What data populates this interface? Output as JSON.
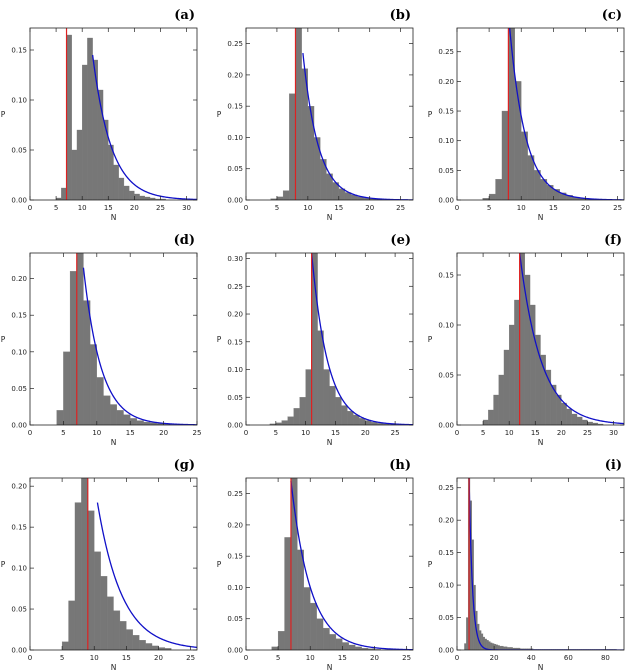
{
  "colors": {
    "bar": "#777777",
    "fit": "#1010c8",
    "marker": "#dd2222",
    "axis": "#222222"
  },
  "chart_data": [
    {
      "panel": "(a)",
      "type": "bar",
      "xlabel": "N",
      "ylabel": "P",
      "xlim": [
        0,
        32
      ],
      "ylim": [
        0,
        0.172
      ],
      "xticks": [
        0,
        5,
        10,
        15,
        20,
        25,
        30
      ],
      "yticks": [
        0.0,
        0.05,
        0.1,
        0.15
      ],
      "bins": {
        "start": 5,
        "width": 1,
        "values": [
          0.002,
          0.012,
          0.165,
          0.05,
          0.07,
          0.135,
          0.162,
          0.14,
          0.11,
          0.08,
          0.055,
          0.035,
          0.022,
          0.014,
          0.009,
          0.006,
          0.004,
          0.003,
          0.002,
          0.001,
          0.001
        ]
      },
      "fit": {
        "x0": 12,
        "xmax": 32,
        "peak": 0.145,
        "decay": 0.28
      },
      "marker": 7
    },
    {
      "panel": "(b)",
      "type": "bar",
      "xlabel": "N",
      "ylabel": "P",
      "xlim": [
        0,
        27
      ],
      "ylim": [
        0,
        0.275
      ],
      "xticks": [
        0,
        5,
        10,
        15,
        20,
        25
      ],
      "yticks": [
        0.0,
        0.05,
        0.1,
        0.15,
        0.2,
        0.25
      ],
      "bins": {
        "start": 4,
        "width": 1,
        "values": [
          0.002,
          0.005,
          0.015,
          0.17,
          0.275,
          0.21,
          0.15,
          0.1,
          0.065,
          0.042,
          0.028,
          0.018,
          0.012,
          0.008,
          0.005,
          0.003,
          0.002,
          0.001
        ]
      },
      "fit": {
        "x0": 9.2,
        "xmax": 27,
        "peak": 0.235,
        "decay": 0.4
      },
      "marker": 8
    },
    {
      "panel": "(c)",
      "type": "bar",
      "xlabel": "N",
      "ylabel": "P",
      "xlim": [
        0,
        26
      ],
      "ylim": [
        0,
        0.29
      ],
      "xticks": [
        0,
        5,
        10,
        15,
        20,
        25
      ],
      "yticks": [
        0.0,
        0.05,
        0.1,
        0.15,
        0.2,
        0.25
      ],
      "bins": {
        "start": 4,
        "width": 1,
        "values": [
          0.003,
          0.01,
          0.035,
          0.15,
          0.29,
          0.2,
          0.115,
          0.075,
          0.05,
          0.035,
          0.025,
          0.018,
          0.012,
          0.008,
          0.005,
          0.003,
          0.002,
          0.001
        ]
      },
      "fit": {
        "x0": 8.2,
        "xmax": 26,
        "peak": 0.29,
        "decay": 0.4
      },
      "marker": 8
    },
    {
      "panel": "(d)",
      "type": "bar",
      "xlabel": "N",
      "ylabel": "P",
      "xlim": [
        0,
        25
      ],
      "ylim": [
        0,
        0.235
      ],
      "xticks": [
        0,
        5,
        10,
        15,
        20,
        25
      ],
      "yticks": [
        0.0,
        0.05,
        0.1,
        0.15,
        0.2
      ],
      "bins": {
        "start": 4,
        "width": 1,
        "values": [
          0.02,
          0.1,
          0.21,
          0.235,
          0.17,
          0.11,
          0.065,
          0.04,
          0.028,
          0.02,
          0.014,
          0.009,
          0.006,
          0.004,
          0.003,
          0.002,
          0.001
        ]
      },
      "fit": {
        "x0": 8,
        "xmax": 25,
        "peak": 0.215,
        "decay": 0.38
      },
      "marker": 7
    },
    {
      "panel": "(e)",
      "type": "bar",
      "xlabel": "N",
      "ylabel": "P",
      "xlim": [
        0,
        28
      ],
      "ylim": [
        0,
        0.31
      ],
      "xticks": [
        0,
        5,
        10,
        15,
        20,
        25
      ],
      "yticks": [
        0.0,
        0.05,
        0.1,
        0.15,
        0.2,
        0.25,
        0.3
      ],
      "bins": {
        "start": 4,
        "width": 1,
        "values": [
          0.002,
          0.004,
          0.008,
          0.015,
          0.03,
          0.05,
          0.1,
          0.31,
          0.17,
          0.1,
          0.07,
          0.05,
          0.035,
          0.025,
          0.018,
          0.012,
          0.008,
          0.005,
          0.003,
          0.002,
          0.001
        ]
      },
      "fit": {
        "x0": 11,
        "xmax": 28,
        "peak": 0.31,
        "decay": 0.37
      },
      "marker": 11
    },
    {
      "panel": "(f)",
      "type": "bar",
      "xlabel": "N",
      "ylabel": "P",
      "xlim": [
        0,
        32
      ],
      "ylim": [
        0,
        0.172
      ],
      "xticks": [
        0,
        5,
        10,
        15,
        20,
        25,
        30
      ],
      "yticks": [
        0.0,
        0.05,
        0.1,
        0.15
      ],
      "bins": {
        "start": 5,
        "width": 1,
        "values": [
          0.005,
          0.015,
          0.03,
          0.05,
          0.075,
          0.1,
          0.125,
          0.172,
          0.15,
          0.12,
          0.09,
          0.07,
          0.055,
          0.04,
          0.03,
          0.022,
          0.016,
          0.011,
          0.008,
          0.005,
          0.003,
          0.002,
          0.001
        ]
      },
      "fit": {
        "x0": 12,
        "xmax": 32,
        "peak": 0.172,
        "decay": 0.24
      },
      "marker": 12
    },
    {
      "panel": "(g)",
      "type": "bar",
      "xlabel": "N",
      "ylabel": "P",
      "xlim": [
        0,
        26
      ],
      "ylim": [
        0,
        0.21
      ],
      "xticks": [
        0,
        5,
        10,
        15,
        20,
        25
      ],
      "yticks": [
        0.0,
        0.05,
        0.1,
        0.15,
        0.2
      ],
      "bins": {
        "start": 5,
        "width": 1,
        "values": [
          0.01,
          0.06,
          0.18,
          0.21,
          0.17,
          0.12,
          0.09,
          0.065,
          0.048,
          0.035,
          0.025,
          0.018,
          0.012,
          0.008,
          0.005,
          0.003,
          0.002
        ]
      },
      "fit": {
        "x0": 10.5,
        "xmax": 26,
        "peak": 0.18,
        "decay": 0.26
      },
      "marker": 9
    },
    {
      "panel": "(h)",
      "type": "bar",
      "xlabel": "N",
      "ylabel": "P",
      "xlim": [
        0,
        26
      ],
      "ylim": [
        0,
        0.275
      ],
      "xticks": [
        0,
        5,
        10,
        15,
        20,
        25
      ],
      "yticks": [
        0.0,
        0.05,
        0.1,
        0.15,
        0.2,
        0.25
      ],
      "bins": {
        "start": 4,
        "width": 1,
        "values": [
          0.005,
          0.03,
          0.18,
          0.275,
          0.16,
          0.1,
          0.075,
          0.05,
          0.035,
          0.025,
          0.018,
          0.012,
          0.008,
          0.005,
          0.003,
          0.002,
          0.001
        ]
      },
      "fit": {
        "x0": 7,
        "xmax": 26,
        "peak": 0.27,
        "decay": 0.33
      },
      "marker": 7
    },
    {
      "panel": "(i)",
      "type": "bar",
      "xlabel": "N",
      "ylabel": "P",
      "xlim": [
        0,
        90
      ],
      "ylim": [
        0,
        0.265
      ],
      "xticks": [
        0,
        20,
        40,
        60,
        80
      ],
      "yticks": [
        0.0,
        0.05,
        0.1,
        0.15,
        0.2,
        0.25
      ],
      "bins": {
        "start": 4,
        "width": 1,
        "values": [
          0.01,
          0.05,
          0.265,
          0.23,
          0.17,
          0.1,
          0.06,
          0.04,
          0.03,
          0.025,
          0.02,
          0.017,
          0.015,
          0.013,
          0.011,
          0.01,
          0.009,
          0.008,
          0.007,
          0.006,
          0.006,
          0.005,
          0.005,
          0.004,
          0.004,
          0.004,
          0.003,
          0.003,
          0.003,
          0.003,
          0.002,
          0.002,
          0.002,
          0.002,
          0.002,
          0.002,
          0.002,
          0.001,
          0.001,
          0.001,
          0.001,
          0.001,
          0.001,
          0.001,
          0.001,
          0.001,
          0.001,
          0.001,
          0.001,
          0.001,
          0.001,
          0.001,
          0.001,
          0.001,
          0.001,
          0.001,
          0.001,
          0.001,
          0.001,
          0.001,
          0.001,
          0.001,
          0.001,
          0.001,
          0.001,
          0.001,
          0.001,
          0.001,
          0.001,
          0.001,
          0.001,
          0.001,
          0.001,
          0.001,
          0.001,
          0.001,
          0.001,
          0.001,
          0.001,
          0.001,
          0.001,
          0.001
        ]
      },
      "fit": {
        "x0": 6.5,
        "xmax": 90,
        "peak": 0.265,
        "decay": 0.55
      },
      "marker": 6.5
    }
  ]
}
